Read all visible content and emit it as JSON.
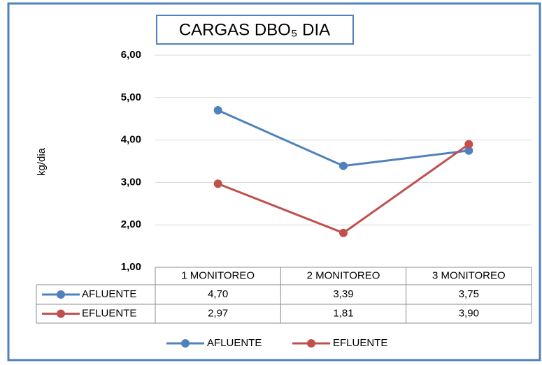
{
  "chart_data": {
    "type": "line",
    "title": "CARGAS DBO₅ DIA",
    "y_label": "kg/dia",
    "categories": [
      "1 MONITOREO",
      "2 MONITOREO",
      "3 MONITOREO"
    ],
    "series": [
      {
        "name": "AFLUENTE",
        "color": "#4f81bd",
        "values": [
          4.7,
          3.39,
          3.75
        ],
        "value_labels": [
          "4,70",
          "3,39",
          "3,75"
        ]
      },
      {
        "name": "EFLUENTE",
        "color": "#c0504d",
        "values": [
          2.97,
          1.81,
          3.9
        ],
        "value_labels": [
          "2,97",
          "1,81",
          "3,90"
        ]
      }
    ],
    "ylim": [
      1,
      6
    ],
    "yticks": [
      {
        "value": 1,
        "label": "1,00"
      },
      {
        "value": 2,
        "label": "2,00"
      },
      {
        "value": 3,
        "label": "3,00"
      },
      {
        "value": 4,
        "label": "4,00"
      },
      {
        "value": 5,
        "label": "5,00"
      },
      {
        "value": 6,
        "label": "6,00"
      }
    ],
    "grid": true,
    "legend": "bottom"
  }
}
